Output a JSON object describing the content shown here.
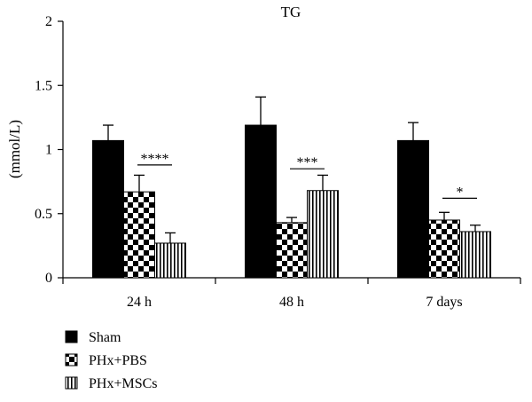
{
  "chart_data": {
    "type": "bar",
    "title": "TG",
    "xlabel": "",
    "ylabel": "(mmol/L)",
    "ylim": [
      0,
      2
    ],
    "yticks": [
      "0",
      "0.5",
      "1",
      "1.5",
      "2"
    ],
    "categories": [
      "24 h",
      "48 h",
      "7 days"
    ],
    "series": [
      {
        "name": "Sham",
        "values": [
          1.07,
          1.19,
          1.07
        ],
        "errors": [
          0.12,
          0.22,
          0.14
        ],
        "pattern": "solid"
      },
      {
        "name": "PHx+PBS",
        "values": [
          0.67,
          0.43,
          0.45
        ],
        "errors": [
          0.13,
          0.04,
          0.06
        ],
        "pattern": "checker"
      },
      {
        "name": "PHx+MSCs",
        "values": [
          0.27,
          0.68,
          0.36
        ],
        "errors": [
          0.08,
          0.12,
          0.05
        ],
        "pattern": "vstripe"
      }
    ],
    "significance": [
      {
        "category": "24 h",
        "label": "****",
        "y": 0.88
      },
      {
        "category": "48 h",
        "label": "***",
        "y": 0.85
      },
      {
        "category": "7 days",
        "label": "*",
        "y": 0.62
      }
    ],
    "legend_position": "bottom-left",
    "grid": false,
    "colors": {
      "bar": "#000000",
      "background": "#ffffff"
    }
  }
}
